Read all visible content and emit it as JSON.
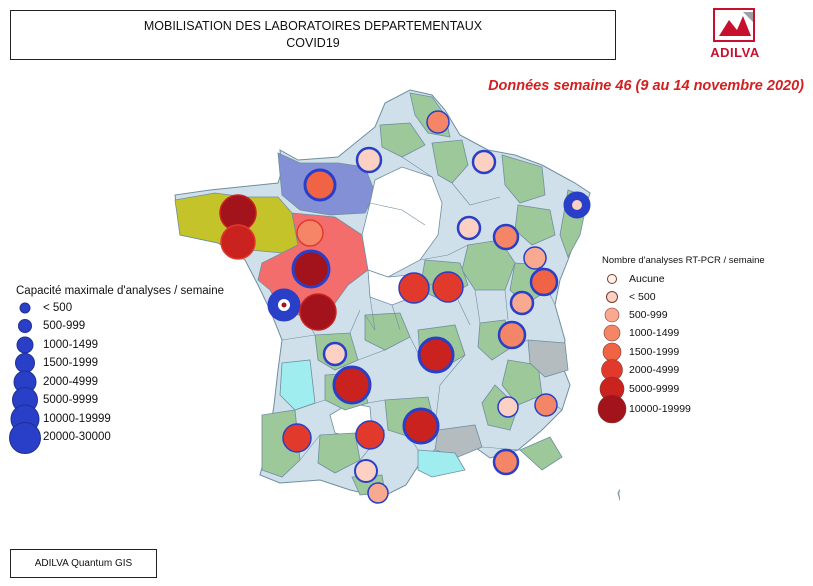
{
  "header": {
    "title_line1": "MOBILISATION DES LABORATOIRES DEPARTEMENTAUX",
    "title_line2": "COVID19"
  },
  "logo": {
    "text": "ADILVA",
    "color": "#c8102e"
  },
  "subtitle": "Données semaine 46 (9 au 14 novembre 2020)",
  "legend_capacity": {
    "title": "Capacité maximale d'analyses / semaine",
    "color": "#2a3fc7",
    "items": [
      "< 500",
      "500-999",
      "1000-1499",
      "1500-1999",
      "2000-4999",
      "5000-9999",
      "10000-19999",
      "20000-30000"
    ]
  },
  "legend_pcr": {
    "title": "Nombre d'analyses RT-PCR / semaine",
    "items": [
      {
        "label": "Aucune",
        "color": "#fff2ec"
      },
      {
        "label": "< 500",
        "color": "#fcd0c2"
      },
      {
        "label": "500-999",
        "color": "#f9a98f"
      },
      {
        "label": "1000-1499",
        "color": "#f58567"
      },
      {
        "label": "1500-1999",
        "color": "#f06445"
      },
      {
        "label": "2000-4999",
        "color": "#e13a2c"
      },
      {
        "label": "5000-9999",
        "color": "#c9221f"
      },
      {
        "label": "10000-19999",
        "color": "#a3131c"
      }
    ]
  },
  "region_colors": {
    "bretagne": "#c4c42a",
    "normandie": "#8390d6",
    "pays_de_la_loire": "#f46d6d",
    "lab_green": "#9cc89a",
    "lab_blue": "#cfe0ea",
    "no_data": "#ffffff",
    "grey": "#b4bcc0",
    "cyan": "#a0edf0"
  },
  "footer": {
    "text": "ADILVA Quantum GIS"
  }
}
